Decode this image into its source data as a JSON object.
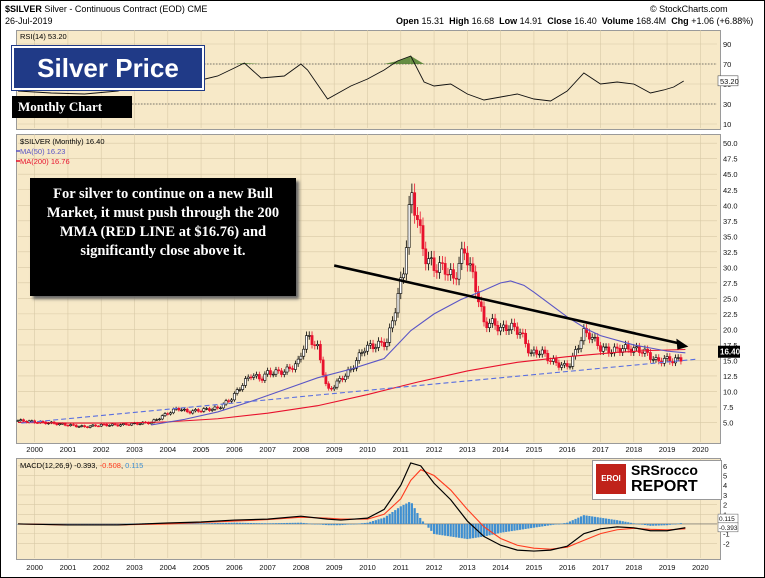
{
  "header": {
    "symbol": "$SILVER",
    "desc": "Silver - Continuous Contract (EOD)",
    "exchange": "CME",
    "date": "26-Jul-2019",
    "source": "© StockCharts.com",
    "open_label": "Open",
    "open": "15.31",
    "high_label": "High",
    "high": "16.68",
    "low_label": "Low",
    "low": "14.91",
    "close_label": "Close",
    "close": "16.40",
    "volume_label": "Volume",
    "volume": "168.4M",
    "chg_label": "Chg",
    "chg": "+1.06 (+6.88%)"
  },
  "overlay": {
    "title": "Silver Price",
    "subtitle": "Monthly Chart",
    "note": "For silver to continue on a new Bull Market, it must push through the 200 MMA (RED LINE at $16.76) and significantly close above it.",
    "logo_tag": "EROI",
    "logo_line1": "SRSrocco",
    "logo_line2": "REPORT"
  },
  "colors": {
    "panel_bg": "#f7e9c8",
    "up_candle": "#000000",
    "down_candle": "#e8112d",
    "ma50": "#5a55c6",
    "ma200": "#e8112d",
    "macd": "#000000",
    "signal": "#ff3b1f",
    "hist": "#3f8fd1",
    "rsi_over": "#4c7d2a",
    "trend_blue": "#5a6fe0"
  },
  "chart_data": [
    {
      "type": "line",
      "name": "RSI",
      "label": "RSI(14) 53.20",
      "last_value": "53.20",
      "ylim": [
        10,
        100
      ],
      "yticks": [
        10,
        30,
        50,
        70,
        90
      ],
      "x": [
        1999.5,
        2000.5,
        2001.5,
        2002.5,
        2003.5,
        2004.0,
        2004.5,
        2005.0,
        2005.5,
        2006.0,
        2006.3,
        2006.8,
        2007.5,
        2008.0,
        2008.2,
        2008.8,
        2009.5,
        2010.0,
        2010.5,
        2010.9,
        2011.3,
        2011.7,
        2012.0,
        2012.5,
        2013.0,
        2013.5,
        2014.0,
        2014.5,
        2015.0,
        2015.5,
        2016.0,
        2016.5,
        2017.0,
        2017.5,
        2018.0,
        2018.5,
        2018.9,
        2019.2,
        2019.5
      ],
      "y": [
        43,
        41,
        40,
        43,
        52,
        60,
        55,
        54,
        58,
        66,
        71,
        56,
        58,
        70,
        64,
        35,
        48,
        55,
        64,
        73,
        78,
        52,
        48,
        50,
        40,
        34,
        37,
        40,
        35,
        33,
        43,
        61,
        50,
        52,
        50,
        41,
        44,
        47,
        53
      ]
    },
    {
      "type": "bar",
      "name": "Price",
      "series_label": "$SILVER (Monthly) 16.40",
      "legend": [
        {
          "name": "MA(50) 16.23",
          "color": "#5a55c6"
        },
        {
          "name": "MA(200) 16.76",
          "color": "#e8112d"
        }
      ],
      "last_price_label": "16.40",
      "ylim": [
        2.5,
        51
      ],
      "yticks": [
        5.0,
        7.5,
        10.0,
        12.5,
        15.0,
        17.5,
        20.0,
        22.5,
        25.0,
        27.5,
        30.0,
        32.5,
        35.0,
        37.5,
        40.0,
        42.5,
        45.0,
        47.5,
        50.0
      ],
      "xlim": [
        1999.5,
        2020.5
      ],
      "xticks": [
        "2000",
        "2001",
        "2002",
        "2003",
        "2004",
        "2005",
        "2006",
        "2007",
        "2008",
        "2009",
        "2010",
        "2011",
        "2012",
        "2013",
        "2014",
        "2015",
        "2016",
        "2017",
        "2018",
        "2019",
        "2020"
      ],
      "x": [
        1999.5,
        2000.0,
        2000.5,
        2001.0,
        2001.5,
        2002.0,
        2002.5,
        2003.0,
        2003.5,
        2004.0,
        2004.3,
        2004.6,
        2005.0,
        2005.5,
        2005.9,
        2006.3,
        2006.5,
        2006.8,
        2007.0,
        2007.5,
        2007.9,
        2008.2,
        2008.5,
        2008.8,
        2009.0,
        2009.5,
        2009.9,
        2010.3,
        2010.6,
        2010.9,
        2011.1,
        2011.3,
        2011.5,
        2011.7,
        2012.0,
        2012.3,
        2012.6,
        2012.9,
        2013.2,
        2013.5,
        2013.8,
        2014.0,
        2014.3,
        2014.6,
        2014.9,
        2015.2,
        2015.5,
        2015.9,
        2016.1,
        2016.5,
        2016.7,
        2017.0,
        2017.3,
        2017.7,
        2018.0,
        2018.3,
        2018.7,
        2018.9,
        2019.2,
        2019.4,
        2019.55
      ],
      "y": [
        5.3,
        5.1,
        4.9,
        4.6,
        4.3,
        4.6,
        4.6,
        4.8,
        5.0,
        6.5,
        7.3,
        6.7,
        7.0,
        7.3,
        8.8,
        11.5,
        12.7,
        12.0,
        13.0,
        13.2,
        14.5,
        19.0,
        17.0,
        10.0,
        11.0,
        13.5,
        17.0,
        17.5,
        18.0,
        25.0,
        30.0,
        42.0,
        38.0,
        32.0,
        30.0,
        30.0,
        28.0,
        33.0,
        28.0,
        21.0,
        21.0,
        20.0,
        20.5,
        19.5,
        16.0,
        16.5,
        15.0,
        14.0,
        14.5,
        19.5,
        19.0,
        17.0,
        16.5,
        17.0,
        16.8,
        16.5,
        14.8,
        15.2,
        15.0,
        15.2,
        16.4
      ],
      "ma50_x": [
        2003.5,
        2004.5,
        2005.5,
        2006.5,
        2007.5,
        2008.5,
        2009.5,
        2010.5,
        2011.3,
        2012.0,
        2012.8,
        2013.5,
        2014.0,
        2014.3,
        2014.7,
        2015.0,
        2015.5,
        2016.0,
        2016.6,
        2017.0,
        2018.0,
        2018.6,
        2019.0,
        2019.55
      ],
      "ma50_y": [
        4.6,
        5.5,
        6.7,
        8.4,
        10.3,
        12.2,
        13.6,
        15.3,
        19.8,
        22.5,
        24.8,
        26.3,
        27.5,
        27.8,
        27.1,
        26.0,
        24.0,
        22.0,
        20.0,
        19.0,
        17.5,
        16.9,
        16.5,
        16.23
      ],
      "ma200_x": [
        1999.5,
        2001.0,
        2002.5,
        2004.0,
        2005.5,
        2007.0,
        2008.5,
        2010.0,
        2011.5,
        2013.0,
        2014.5,
        2016.0,
        2017.5,
        2018.5,
        2019.55
      ],
      "ma200_y": [
        5.0,
        4.9,
        4.9,
        5.1,
        5.6,
        6.5,
        7.7,
        9.5,
        11.5,
        13.3,
        14.7,
        15.6,
        16.3,
        16.6,
        16.76
      ],
      "trend_blue_x": [
        1999.6,
        2019.9
      ],
      "trend_blue_y": [
        4.9,
        15.2
      ],
      "trend_black_x": [
        2009.0,
        2019.4
      ],
      "trend_black_y": [
        30.3,
        17.7
      ]
    },
    {
      "type": "line",
      "name": "MACD",
      "label": "MACD(12,26,9) -0.393, -0.508, 0.115",
      "macd_label": "MACD(12,26,9)",
      "macd_value": "-0.393",
      "signal_value": "-0.508",
      "hist_value": "0.115",
      "right_labels": [
        "0.115",
        "-0.393"
      ],
      "ylim": [
        -3,
        6.5
      ],
      "yticks": [
        -2,
        -1,
        0,
        1,
        2,
        3,
        4,
        5,
        6
      ],
      "x": [
        1999.5,
        2001.0,
        2002.5,
        2004.0,
        2005.0,
        2006.0,
        2007.0,
        2008.0,
        2008.8,
        2009.2,
        2010.0,
        2010.5,
        2011.0,
        2011.3,
        2011.6,
        2012.0,
        2012.5,
        2013.0,
        2013.5,
        2014.0,
        2014.5,
        2015.0,
        2015.5,
        2016.0,
        2016.5,
        2017.0,
        2017.5,
        2018.0,
        2018.5,
        2019.0,
        2019.55
      ],
      "y": [
        0.0,
        -0.1,
        -0.1,
        0.1,
        0.2,
        0.4,
        0.5,
        0.8,
        0.5,
        0.4,
        0.6,
        1.5,
        4.0,
        6.3,
        6.0,
        4.2,
        2.5,
        0.3,
        -1.3,
        -2.2,
        -2.7,
        -2.8,
        -2.7,
        -2.3,
        -1.0,
        -0.5,
        -0.3,
        -0.4,
        -0.7,
        -0.7,
        -0.39
      ],
      "signal": [
        0.0,
        -0.1,
        -0.1,
        0.0,
        0.15,
        0.3,
        0.45,
        0.7,
        0.6,
        0.5,
        0.5,
        1.0,
        2.6,
        4.5,
        5.6,
        5.0,
        3.5,
        1.5,
        -0.3,
        -1.5,
        -2.2,
        -2.5,
        -2.6,
        -2.4,
        -1.7,
        -1.0,
        -0.6,
        -0.45,
        -0.55,
        -0.6,
        -0.51
      ]
    }
  ]
}
